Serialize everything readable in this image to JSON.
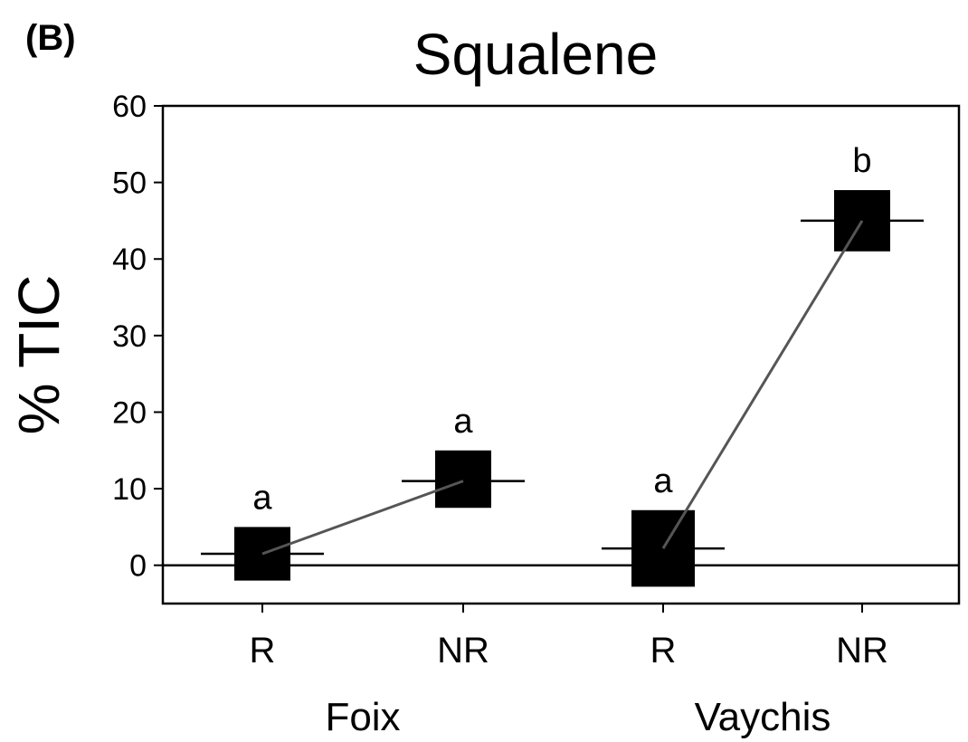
{
  "panel_label": "(B)",
  "chart_data": {
    "type": "scatter",
    "title": "Squalene",
    "ylabel": "% TIC",
    "xlabel": "",
    "ylim": [
      -5,
      60
    ],
    "yticks": [
      0,
      10,
      20,
      30,
      40,
      50,
      60
    ],
    "zero_line": true,
    "grid": false,
    "legend": "none",
    "groups": [
      {
        "name": "Foix",
        "points": [
          {
            "category": "R",
            "mean": 1.5,
            "box_low": -2,
            "box_high": 5,
            "letter": "a"
          },
          {
            "category": "NR",
            "mean": 11,
            "box_low": 7.5,
            "box_high": 15,
            "letter": "a"
          }
        ]
      },
      {
        "name": "Vaychis",
        "points": [
          {
            "category": "R",
            "mean": 2.2,
            "box_low": -2.8,
            "box_high": 7.2,
            "letter": "a"
          },
          {
            "category": "NR",
            "mean": 45,
            "box_low": 41,
            "box_high": 49,
            "letter": "b"
          }
        ]
      }
    ],
    "colors": {
      "box": "#000000",
      "connector": "#555555",
      "axis": "#000000"
    }
  }
}
